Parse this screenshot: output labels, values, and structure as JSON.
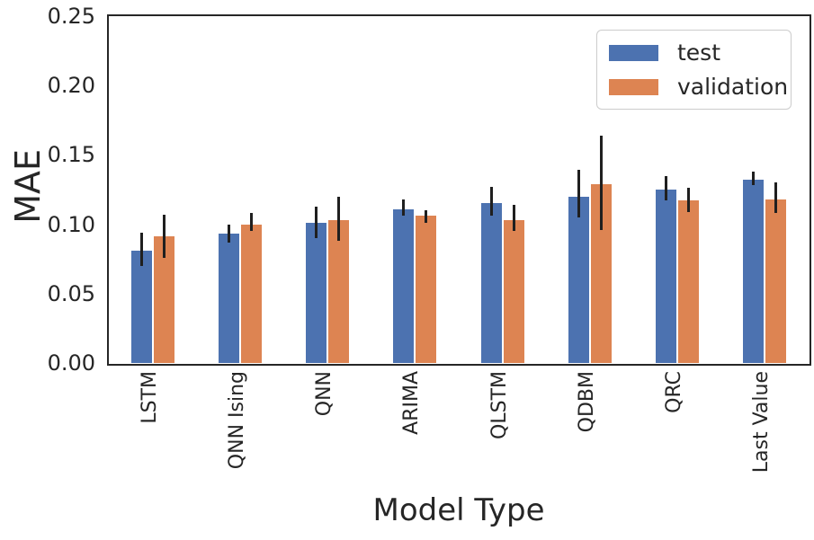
{
  "chart_data": {
    "type": "bar",
    "xlabel": "Model Type",
    "ylabel": "MAE",
    "categories": [
      "LSTM",
      "QNN Ising",
      "QNN",
      "ARIMA",
      "QLSTM",
      "QDBM",
      "QRC",
      "Last Value"
    ],
    "series": [
      {
        "name": "test",
        "color": "#4C72B0",
        "values": [
          0.081,
          0.093,
          0.101,
          0.111,
          0.115,
          0.12,
          0.125,
          0.132
        ],
        "error_low": [
          0.07,
          0.087,
          0.09,
          0.106,
          0.106,
          0.105,
          0.117,
          0.128
        ],
        "error_high": [
          0.094,
          0.1,
          0.113,
          0.118,
          0.127,
          0.139,
          0.135,
          0.138
        ]
      },
      {
        "name": "validation",
        "color": "#DD8452",
        "values": [
          0.091,
          0.1,
          0.103,
          0.106,
          0.103,
          0.129,
          0.117,
          0.118
        ],
        "error_low": [
          0.076,
          0.095,
          0.088,
          0.101,
          0.095,
          0.096,
          0.109,
          0.108
        ],
        "error_high": [
          0.107,
          0.108,
          0.12,
          0.11,
          0.114,
          0.164,
          0.126,
          0.13
        ]
      }
    ],
    "ylim": [
      0,
      0.25
    ],
    "ytick_values": [
      0,
      0.05,
      0.1,
      0.15,
      0.2,
      0.25
    ],
    "ytick_labels": [
      "0.00",
      "0.05",
      "0.10",
      "0.15",
      "0.20",
      "0.25"
    ],
    "error_bar_color": "#1f1f1f",
    "legend_position": "upper right",
    "grid": false
  }
}
